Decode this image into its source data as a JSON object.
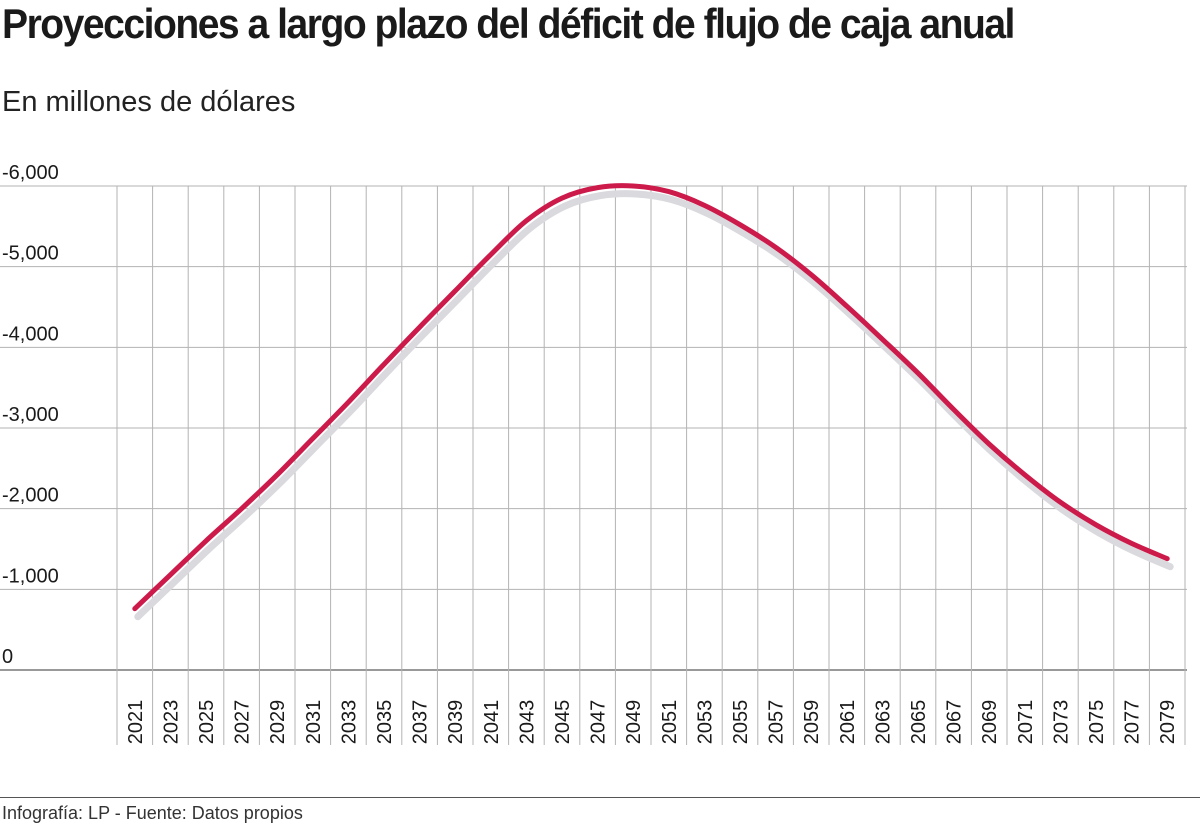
{
  "title": "Proyecciones a largo plazo del déficit de flujo de caja anual",
  "subtitle": "En millones de dólares",
  "source": "Infografía: LP - Fuente: Datos propios",
  "colors": {
    "line": "#cc1a4a",
    "shadow": "#d9d9de",
    "grid": "#b3b3b3",
    "axis": "#333333"
  },
  "chart_data": {
    "type": "line",
    "title": "Proyecciones a largo plazo del déficit de flujo de caja anual",
    "subtitle": "En millones de dólares",
    "xlabel": "",
    "ylabel": "",
    "grid": true,
    "legend": "none",
    "y_ticks": [
      0,
      -1000,
      -2000,
      -3000,
      -4000,
      -5000,
      -6000
    ],
    "y_tick_labels": [
      "0",
      "-1,000",
      "-2,000",
      "-3,000",
      "-4,000",
      "-5,000",
      "-6,000"
    ],
    "ylim": [
      0,
      -6000
    ],
    "x_ticks": [
      2021,
      2023,
      2025,
      2027,
      2029,
      2031,
      2033,
      2035,
      2037,
      2039,
      2041,
      2043,
      2045,
      2047,
      2049,
      2051,
      2053,
      2055,
      2057,
      2059,
      2061,
      2063,
      2065,
      2067,
      2069,
      2071,
      2073,
      2075,
      2077,
      2079
    ],
    "x_tick_labels": [
      "2021",
      "2023",
      "2025",
      "2027",
      "2029",
      "2031",
      "2033",
      "2035",
      "2037",
      "2039",
      "2041",
      "2043",
      "2045",
      "2047",
      "2049",
      "2051",
      "2053",
      "2055",
      "2057",
      "2059",
      "2061",
      "2063",
      "2065",
      "2067",
      "2069",
      "2071",
      "2073",
      "2075",
      "2077",
      "2079"
    ],
    "series": [
      {
        "x": [
          2021,
          2023,
          2025,
          2027,
          2029,
          2031,
          2033,
          2035,
          2037,
          2039,
          2041,
          2043,
          2045,
          2047,
          2049,
          2051,
          2053,
          2055,
          2057,
          2059,
          2061,
          2063,
          2065,
          2067,
          2069,
          2071,
          2073,
          2075,
          2077,
          2079
        ],
        "values": [
          -760,
          -1180,
          -1600,
          -2000,
          -2420,
          -2870,
          -3320,
          -3790,
          -4250,
          -4700,
          -5150,
          -5570,
          -5850,
          -5980,
          -6000,
          -5930,
          -5760,
          -5520,
          -5240,
          -4900,
          -4510,
          -4100,
          -3680,
          -3230,
          -2800,
          -2420,
          -2080,
          -1800,
          -1570,
          -1380
        ]
      }
    ]
  }
}
